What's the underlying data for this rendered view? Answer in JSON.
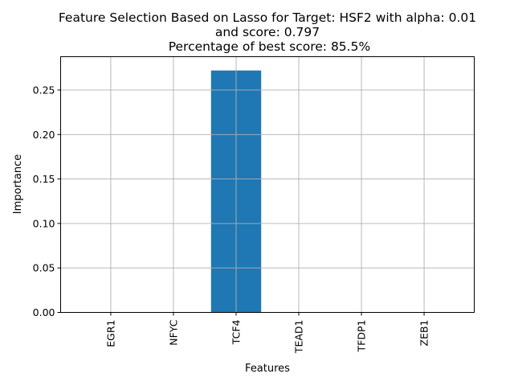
{
  "chart_data": {
    "type": "bar",
    "title_lines": [
      "Feature Selection Based on Lasso for Target: HSF2 with alpha: 0.01",
      "and score: 0.797",
      " Percentage of best score: 85.5%"
    ],
    "xlabel": "Features",
    "ylabel": "Importance",
    "categories": [
      "EGR1",
      "NFYC",
      "TCF4",
      "TEAD1",
      "TFDP1",
      "ZEB1"
    ],
    "values": [
      0.0,
      0.0,
      0.272,
      0.0,
      0.0,
      0.0
    ],
    "ylim": [
      0,
      0.2875
    ],
    "yticks": [
      0.0,
      0.05,
      0.1,
      0.15,
      0.2,
      0.25
    ],
    "ytick_labels": [
      "0.00",
      "0.05",
      "0.10",
      "0.15",
      "0.20",
      "0.25"
    ],
    "grid": true,
    "bar_color": "#1f77b4"
  }
}
